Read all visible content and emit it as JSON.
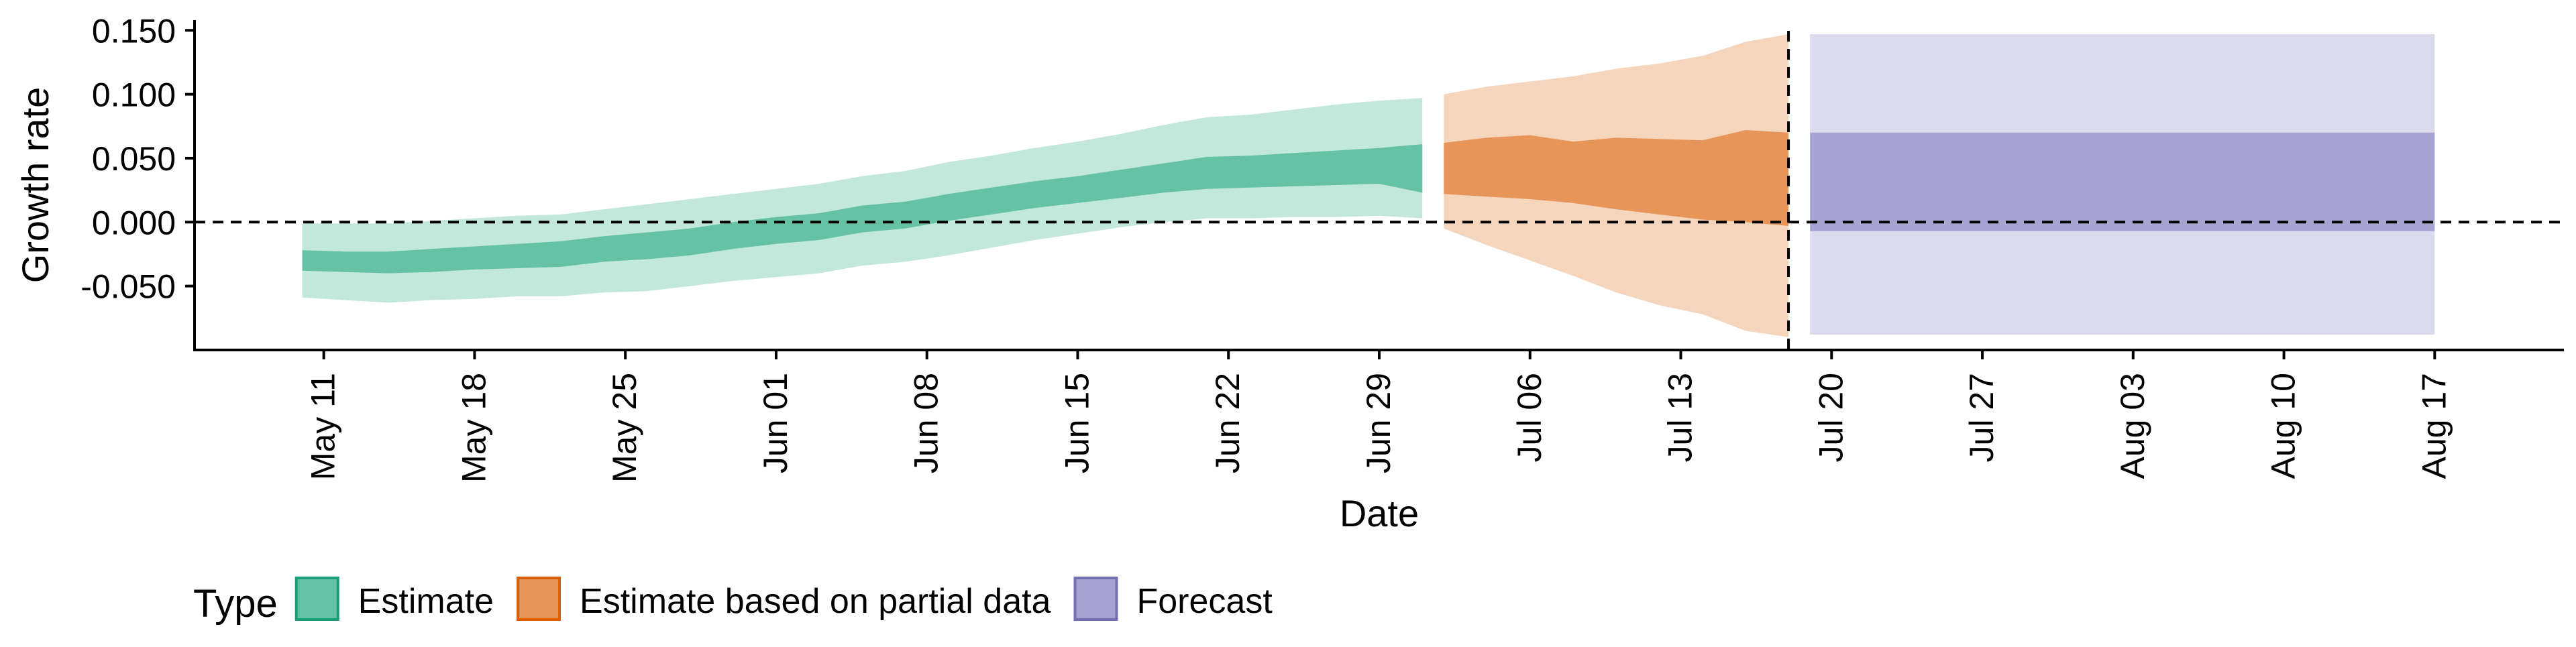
{
  "chart_data": {
    "type": "area",
    "xlabel": "Date",
    "ylabel": "Growth rate",
    "x_tick_labels": [
      "May 11",
      "May 18",
      "May 25",
      "Jun 01",
      "Jun 08",
      "Jun 15",
      "Jun 22",
      "Jun 29",
      "Jul 06",
      "Jul 13",
      "Jul 20",
      "Jul 27",
      "Aug 03",
      "Aug 10",
      "Aug 17"
    ],
    "x_tick_dates": [
      "2020-05-11",
      "2020-05-18",
      "2020-05-25",
      "2020-06-01",
      "2020-06-08",
      "2020-06-15",
      "2020-06-22",
      "2020-06-29",
      "2020-07-06",
      "2020-07-13",
      "2020-07-20",
      "2020-07-27",
      "2020-08-03",
      "2020-08-10",
      "2020-08-17"
    ],
    "y_tick_labels": [
      "-0.050",
      "0.000",
      "0.050",
      "0.100",
      "0.150"
    ],
    "y_ticks": [
      -0.05,
      0.0,
      0.05,
      0.1,
      0.15
    ],
    "xlim": [
      "2020-05-05",
      "2020-08-23"
    ],
    "ylim": [
      -0.1,
      0.158
    ],
    "grid": false,
    "hline_y": 0.0,
    "vline_date": "2020-07-18",
    "legend": {
      "title": "Type",
      "position": "bottom",
      "entries": [
        {
          "label": "Estimate",
          "fill": "#66C2A5",
          "stroke": "#1B9E77"
        },
        {
          "label": "Estimate based on partial data",
          "fill": "#E8955A",
          "stroke": "#D95F02"
        },
        {
          "label": "Forecast",
          "fill": "#A8A4D1",
          "stroke": "#7570B3"
        }
      ]
    },
    "series": [
      {
        "name": "Estimate",
        "fill_color": "#66C2A5",
        "points": [
          {
            "date": "2020-05-10",
            "low90": -0.059,
            "low50": -0.038,
            "high50": -0.022,
            "high90": -0.001
          },
          {
            "date": "2020-05-12",
            "low90": -0.061,
            "low50": -0.039,
            "high50": -0.023,
            "high90": -0.001
          },
          {
            "date": "2020-05-14",
            "low90": -0.063,
            "low50": -0.04,
            "high50": -0.023,
            "high90": -0.001
          },
          {
            "date": "2020-05-16",
            "low90": -0.061,
            "low50": -0.039,
            "high50": -0.021,
            "high90": 0.001
          },
          {
            "date": "2020-05-18",
            "low90": -0.06,
            "low50": -0.037,
            "high50": -0.019,
            "high90": 0.003
          },
          {
            "date": "2020-05-20",
            "low90": -0.058,
            "low50": -0.036,
            "high50": -0.017,
            "high90": 0.005
          },
          {
            "date": "2020-05-22",
            "low90": -0.058,
            "low50": -0.035,
            "high50": -0.015,
            "high90": 0.006
          },
          {
            "date": "2020-05-24",
            "low90": -0.055,
            "low50": -0.031,
            "high50": -0.011,
            "high90": 0.01
          },
          {
            "date": "2020-05-26",
            "low90": -0.054,
            "low50": -0.029,
            "high50": -0.008,
            "high90": 0.014
          },
          {
            "date": "2020-05-28",
            "low90": -0.05,
            "low50": -0.026,
            "high50": -0.005,
            "high90": 0.018
          },
          {
            "date": "2020-05-30",
            "low90": -0.046,
            "low50": -0.021,
            "high50": 0.0,
            "high90": 0.022
          },
          {
            "date": "2020-06-01",
            "low90": -0.043,
            "low50": -0.017,
            "high50": 0.004,
            "high90": 0.026
          },
          {
            "date": "2020-06-03",
            "low90": -0.04,
            "low50": -0.014,
            "high50": 0.007,
            "high90": 0.03
          },
          {
            "date": "2020-06-05",
            "low90": -0.034,
            "low50": -0.008,
            "high50": 0.013,
            "high90": 0.036
          },
          {
            "date": "2020-06-07",
            "low90": -0.031,
            "low50": -0.005,
            "high50": 0.016,
            "high90": 0.04
          },
          {
            "date": "2020-06-09",
            "low90": -0.026,
            "low50": 0.001,
            "high50": 0.022,
            "high90": 0.047
          },
          {
            "date": "2020-06-11",
            "low90": -0.02,
            "low50": 0.006,
            "high50": 0.027,
            "high90": 0.052
          },
          {
            "date": "2020-06-13",
            "low90": -0.014,
            "low50": 0.011,
            "high50": 0.032,
            "high90": 0.058
          },
          {
            "date": "2020-06-15",
            "low90": -0.009,
            "low50": 0.015,
            "high50": 0.036,
            "high90": 0.063
          },
          {
            "date": "2020-06-17",
            "low90": -0.004,
            "low50": 0.019,
            "high50": 0.041,
            "high90": 0.069
          },
          {
            "date": "2020-06-19",
            "low90": 0.0,
            "low50": 0.023,
            "high50": 0.046,
            "high90": 0.076
          },
          {
            "date": "2020-06-21",
            "low90": 0.003,
            "low50": 0.026,
            "high50": 0.051,
            "high90": 0.082
          },
          {
            "date": "2020-06-23",
            "low90": 0.003,
            "low50": 0.027,
            "high50": 0.052,
            "high90": 0.084
          },
          {
            "date": "2020-06-25",
            "low90": 0.004,
            "low50": 0.028,
            "high50": 0.054,
            "high90": 0.088
          },
          {
            "date": "2020-06-27",
            "low90": 0.004,
            "low50": 0.029,
            "high50": 0.056,
            "high90": 0.092
          },
          {
            "date": "2020-06-29",
            "low90": 0.005,
            "low50": 0.03,
            "high50": 0.058,
            "high90": 0.095
          },
          {
            "date": "2020-07-01",
            "low90": 0.003,
            "low50": 0.023,
            "high50": 0.061,
            "high90": 0.097
          }
        ]
      },
      {
        "name": "Estimate based on partial data",
        "fill_color": "#E8955A",
        "points": [
          {
            "date": "2020-07-02",
            "low90": -0.005,
            "low50": 0.022,
            "high50": 0.062,
            "high90": 0.1
          },
          {
            "date": "2020-07-04",
            "low90": -0.018,
            "low50": 0.02,
            "high50": 0.066,
            "high90": 0.106
          },
          {
            "date": "2020-07-06",
            "low90": -0.03,
            "low50": 0.018,
            "high50": 0.068,
            "high90": 0.11
          },
          {
            "date": "2020-07-08",
            "low90": -0.042,
            "low50": 0.015,
            "high50": 0.063,
            "high90": 0.114
          },
          {
            "date": "2020-07-10",
            "low90": -0.055,
            "low50": 0.01,
            "high50": 0.066,
            "high90": 0.12
          },
          {
            "date": "2020-07-12",
            "low90": -0.065,
            "low50": 0.006,
            "high50": 0.065,
            "high90": 0.124
          },
          {
            "date": "2020-07-14",
            "low90": -0.072,
            "low50": 0.002,
            "high50": 0.064,
            "high90": 0.13
          },
          {
            "date": "2020-07-16",
            "low90": -0.085,
            "low50": 0.0,
            "high50": 0.072,
            "high90": 0.141
          },
          {
            "date": "2020-07-18",
            "low90": -0.09,
            "low50": -0.003,
            "high50": 0.07,
            "high90": 0.147
          }
        ]
      },
      {
        "name": "Forecast",
        "fill_color": "#A8A4D1",
        "points": [
          {
            "date": "2020-07-19",
            "low90": -0.088,
            "low50": -0.007,
            "high50": 0.07,
            "high90": 0.147
          },
          {
            "date": "2020-08-17",
            "low90": -0.088,
            "low50": -0.007,
            "high50": 0.07,
            "high90": 0.147
          }
        ]
      }
    ]
  }
}
